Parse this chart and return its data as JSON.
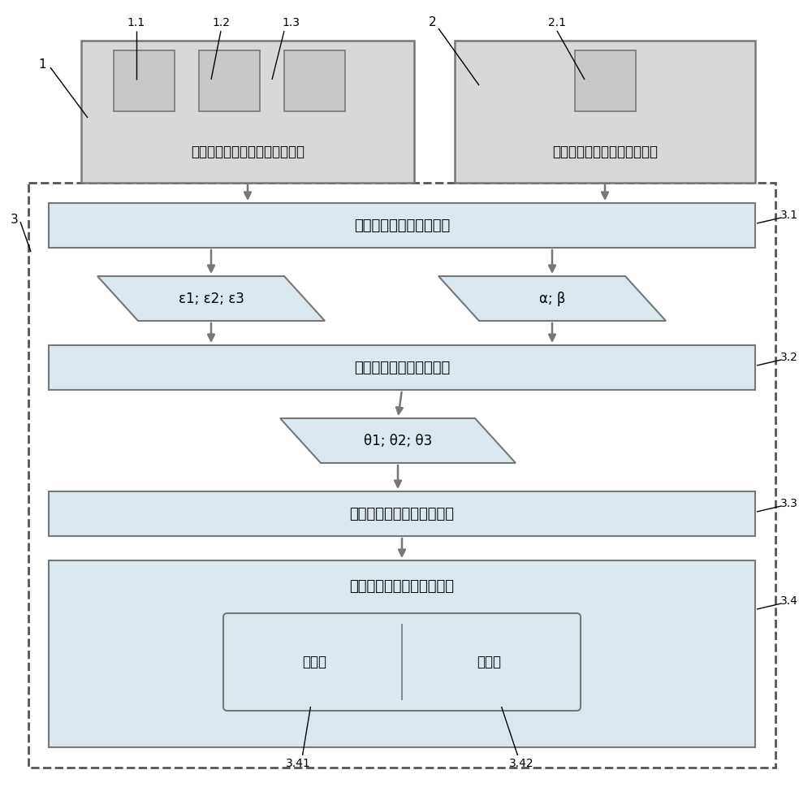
{
  "bg_color": "#ffffff",
  "box_gray_fill": "#d8d8d8",
  "box_gray_edge": "#777777",
  "box_inner_fill": "#c8c8c8",
  "box_blue_fill": "#dce8f0",
  "box_blue_edge": "#777777",
  "para_fill": "#dce8f0",
  "para_edge": "#777777",
  "dashed_edge": "#555555",
  "arrow_color": "#777777",
  "label_color": "#000000",
  "label1": "1",
  "label1_1": "1.1",
  "label1_2": "1.2",
  "label1_3": "1.3",
  "label2": "2",
  "label2_1": "2.1",
  "label3": "3",
  "label3_1": "3.1",
  "label3_2": "3.2",
  "label3_3": "3.3",
  "label3_4": "3.4",
  "label3_41": "3.41",
  "label3_42": "3.42",
  "box1_text": "反钓挖掘机机械臂姿态测里部件",
  "box2_text": "反钓挖掘机底座姿态测里部件",
  "box3_1_text": "姿态传感器数据采集单件",
  "box3_2_text": "倒斜传感器角度换算单件",
  "box3_3_text": "最大挖掘力量角度计算单件",
  "box3_4_text": "最大挖掘力量引导提示单件",
  "para_left_text": "ε1; ε2; ε3",
  "para_right_text": "α; β",
  "para_bottom_text": "θ1; θ2; θ3",
  "sub_left_text": "显示屏",
  "sub_right_text": "扩音器"
}
